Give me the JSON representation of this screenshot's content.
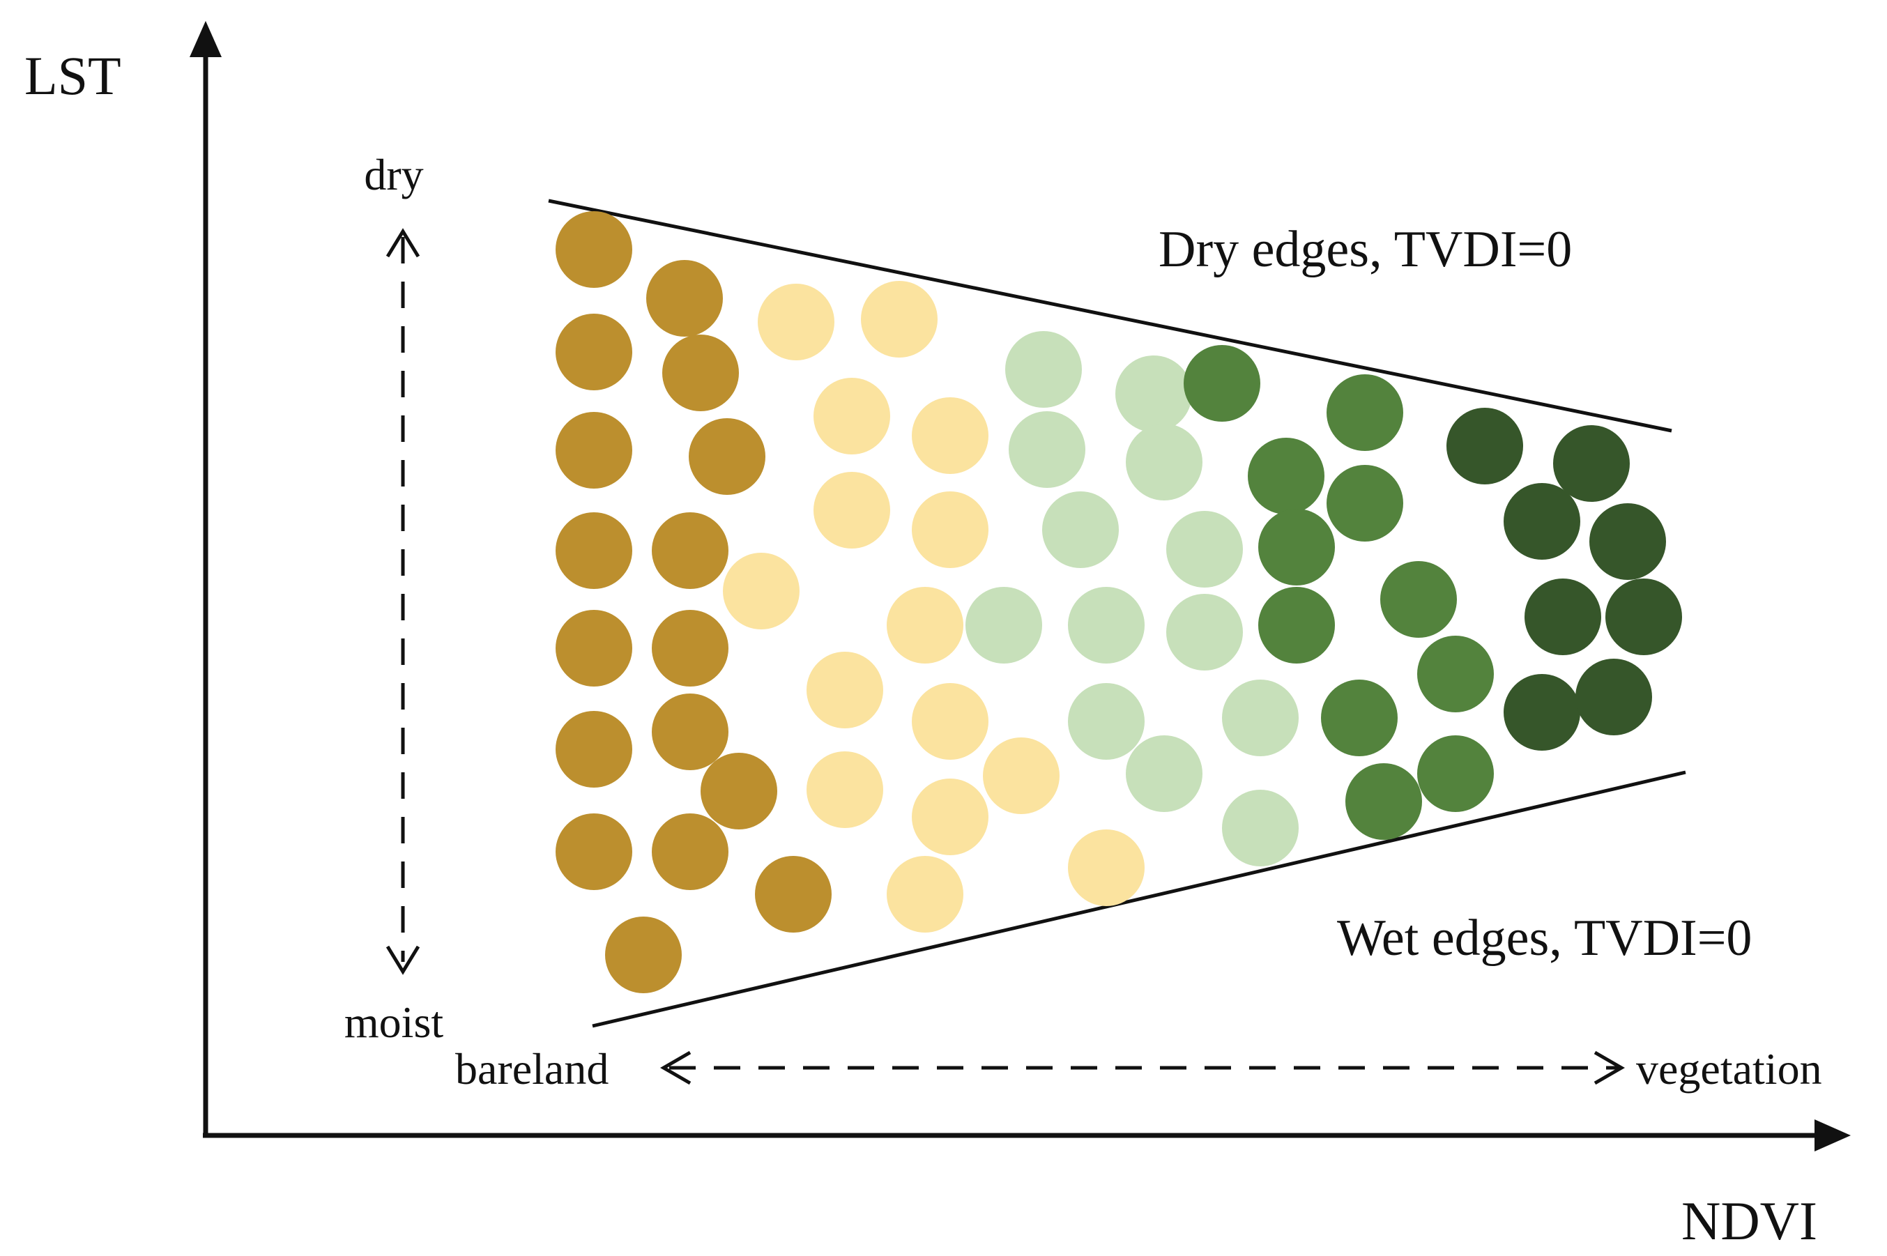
{
  "labels": {
    "y_axis": "LST",
    "x_axis": "NDVI",
    "dry": "dry",
    "moist": "moist",
    "bareland": "bareland",
    "vegetation": "vegetation",
    "dry_edge": "Dry edges, TVDI=0",
    "wet_edge": "Wet edges, TVDI=0"
  },
  "colors": {
    "line": "#111111",
    "bare": "#bc8f2e",
    "sparse": "#fbe39f",
    "light_green": "#c7e0ba",
    "green": "#53833d",
    "dark_green": "#36562a"
  }
}
